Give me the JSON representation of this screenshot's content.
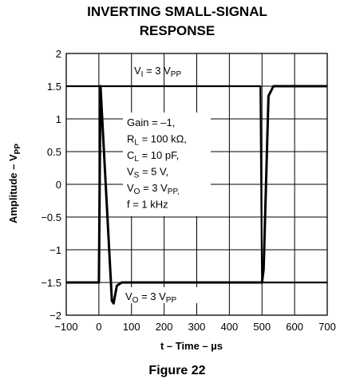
{
  "chart_data": {
    "type": "line",
    "title": [
      "INVERTING SMALL-SIGNAL",
      "RESPONSE"
    ],
    "xlabel": "t – Time – µs",
    "ylabel": "Amplitude – V",
    "ylabel_sub": "PP",
    "xlim": [
      -100,
      700
    ],
    "ylim": [
      -2,
      2
    ],
    "xticks": [
      -100,
      0,
      100,
      200,
      300,
      400,
      500,
      600,
      700
    ],
    "xtick_labels": [
      "−100",
      "0",
      "100",
      "200",
      "300",
      "400",
      "500",
      "600",
      "700"
    ],
    "yticks": [
      2,
      1.5,
      1,
      0.5,
      0,
      -0.5,
      -1,
      -1.5,
      -2
    ],
    "ytick_labels": [
      "2",
      "1.5",
      "1",
      "0.5",
      "0",
      "−0.5",
      "−1",
      "−1.5",
      "−2"
    ],
    "grid": true,
    "annotations": {
      "vi": {
        "main": "V",
        "sub": "I",
        "rest": " = 3 V",
        "rest_sub": "PP"
      },
      "vo": {
        "main": "V",
        "sub": "O",
        "rest": " = 3 V",
        "rest_sub": "PP"
      }
    },
    "conditions": [
      {
        "main": "Gain = –1,",
        "sub": "",
        "rest": "",
        "rest_sub": ""
      },
      {
        "main": "R",
        "sub": "L",
        "rest": " = 100 kΩ,",
        "rest_sub": ""
      },
      {
        "main": "C",
        "sub": "L",
        "rest": " = 10 pF,",
        "rest_sub": ""
      },
      {
        "main": "V",
        "sub": "S",
        "rest": " = 5 V,",
        "rest_sub": ""
      },
      {
        "main": "V",
        "sub": "O",
        "rest": " = 3 V",
        "rest_sub": "PP,"
      },
      {
        "main": "f = 1 kHz",
        "sub": "",
        "rest": "",
        "rest_sub": ""
      }
    ],
    "series": [
      {
        "name": "V_I",
        "x": [
          -100,
          -5,
          0,
          495,
          500,
          600,
          700
        ],
        "y": [
          1.5,
          1.5,
          1.5,
          1.5,
          -1.5,
          -1.5,
          -1.5
        ]
      },
      {
        "name": "V_O",
        "x": [
          -100,
          0,
          5,
          40,
          45,
          55,
          70,
          100,
          495,
          500,
          505,
          520,
          535,
          560,
          700
        ],
        "y": [
          -1.5,
          -1.5,
          1.5,
          -1.78,
          -1.82,
          -1.55,
          -1.5,
          -1.5,
          -1.5,
          -1.5,
          -1.3,
          1.35,
          1.5,
          1.5,
          1.5
        ]
      }
    ],
    "footer": "Figure 22"
  }
}
